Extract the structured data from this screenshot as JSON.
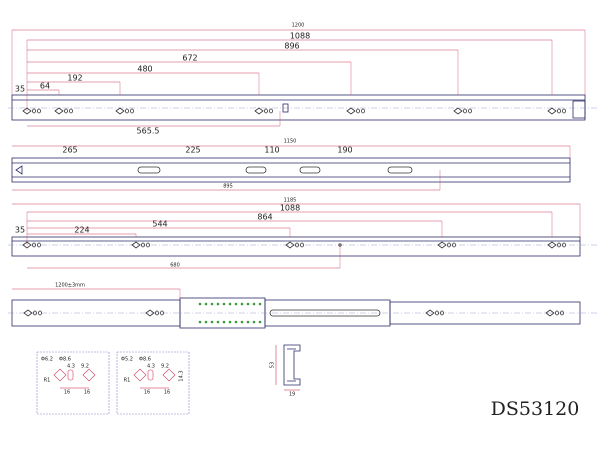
{
  "views": [
    {
      "overall": "1200",
      "dims": [
        "1088",
        "896",
        "672",
        "480",
        "192",
        "64",
        "35",
        "565.5"
      ]
    },
    {
      "overall": "1150",
      "dims": [
        "265",
        "225",
        "110",
        "190",
        "895"
      ]
    },
    {
      "overall": "1185",
      "dims": [
        "1088",
        "864",
        "544",
        "224",
        "35",
        "680"
      ]
    },
    {
      "overall": "1200±3mm"
    }
  ],
  "hole_details": [
    {
      "labels": [
        "Φ6.2",
        "Φ8.6",
        "4.3",
        "9.2",
        "R1",
        "16",
        "16"
      ]
    },
    {
      "labels": [
        "Φ5.2",
        "Φ8.6",
        "4.3",
        "9.2",
        "R1",
        "16",
        "16",
        "14.3"
      ]
    }
  ],
  "profile": {
    "height": "53",
    "width": "19"
  },
  "model": "DS53120"
}
